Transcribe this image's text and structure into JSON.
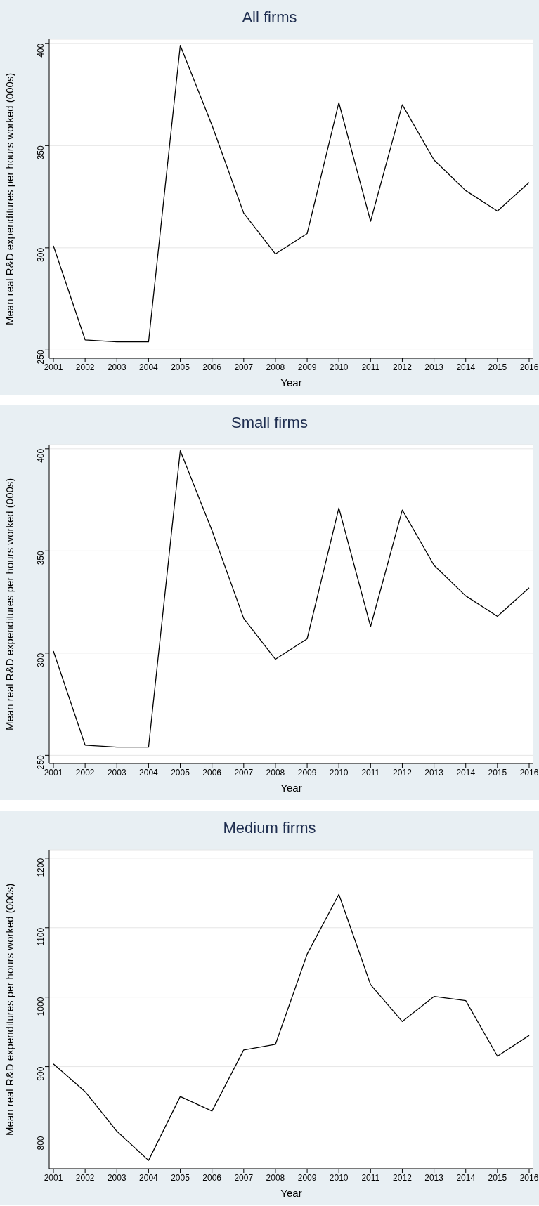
{
  "chart_data": [
    {
      "type": "line",
      "title": "All firms",
      "xlabel": "Year",
      "ylabel": "Mean real R&D expenditures per hours worked (000s)",
      "categories": [
        "2001",
        "2002",
        "2003",
        "2004",
        "2005",
        "2006",
        "2007",
        "2008",
        "2009",
        "2010",
        "2011",
        "2012",
        "2013",
        "2014",
        "2015",
        "2016"
      ],
      "series": [
        {
          "color": "#000000",
          "values": [
            301,
            255,
            254,
            254,
            399,
            360,
            317,
            297,
            307,
            371,
            313,
            370,
            343,
            328,
            318,
            332
          ]
        }
      ],
      "ylim": [
        246,
        402
      ],
      "yticks": [
        250,
        300,
        350,
        400
      ],
      "grid": "y"
    },
    {
      "type": "line",
      "title": "Small firms",
      "xlabel": "Year",
      "ylabel": "Mean real R&D expenditures per hours worked (000s)",
      "categories": [
        "2001",
        "2002",
        "2003",
        "2004",
        "2005",
        "2006",
        "2007",
        "2008",
        "2009",
        "2010",
        "2011",
        "2012",
        "2013",
        "2014",
        "2015",
        "2016"
      ],
      "series": [
        {
          "color": "#000000",
          "values": [
            301,
            255,
            254,
            254,
            399,
            360,
            317,
            297,
            307,
            371,
            313,
            370,
            343,
            328,
            318,
            332
          ]
        }
      ],
      "ylim": [
        246,
        402
      ],
      "yticks": [
        250,
        300,
        350,
        400
      ],
      "grid": "y"
    },
    {
      "type": "line",
      "title": "Medium firms",
      "xlabel": "Year",
      "ylabel": "Mean real R&D expenditures per hours worked (000s)",
      "categories": [
        "2001",
        "2002",
        "2003",
        "2004",
        "2005",
        "2006",
        "2007",
        "2008",
        "2009",
        "2010",
        "2011",
        "2012",
        "2013",
        "2014",
        "2015",
        "2016"
      ],
      "series": [
        {
          "color": "#000000",
          "values": [
            904,
            864,
            807,
            765,
            857,
            836,
            924,
            932,
            1062,
            1148,
            1018,
            965,
            1001,
            995,
            915,
            945
          ]
        }
      ],
      "ylim": [
        753,
        1212
      ],
      "yticks": [
        800,
        900,
        1000,
        1100,
        1200
      ],
      "grid": "y"
    }
  ]
}
